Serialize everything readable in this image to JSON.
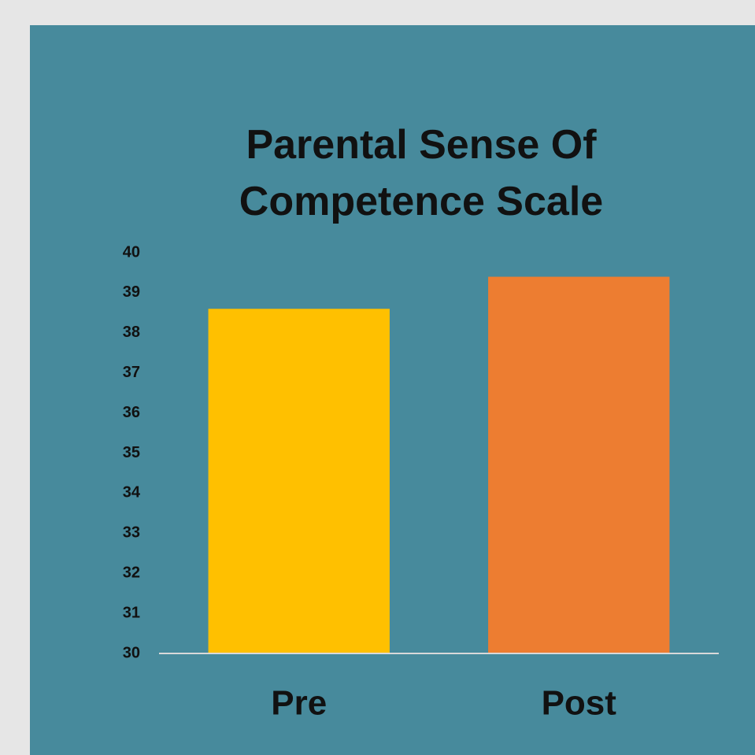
{
  "chart_data": {
    "type": "bar",
    "title": "Parental Sense Of Competence Scale",
    "categories": [
      "Pre",
      "Post"
    ],
    "values": [
      38.6,
      39.4
    ],
    "colors": [
      "#ffc000",
      "#ed7d31"
    ],
    "ylim": [
      30,
      40
    ],
    "yticks": [
      30,
      31,
      32,
      33,
      34,
      35,
      36,
      37,
      38,
      39,
      40
    ],
    "grid": false
  }
}
